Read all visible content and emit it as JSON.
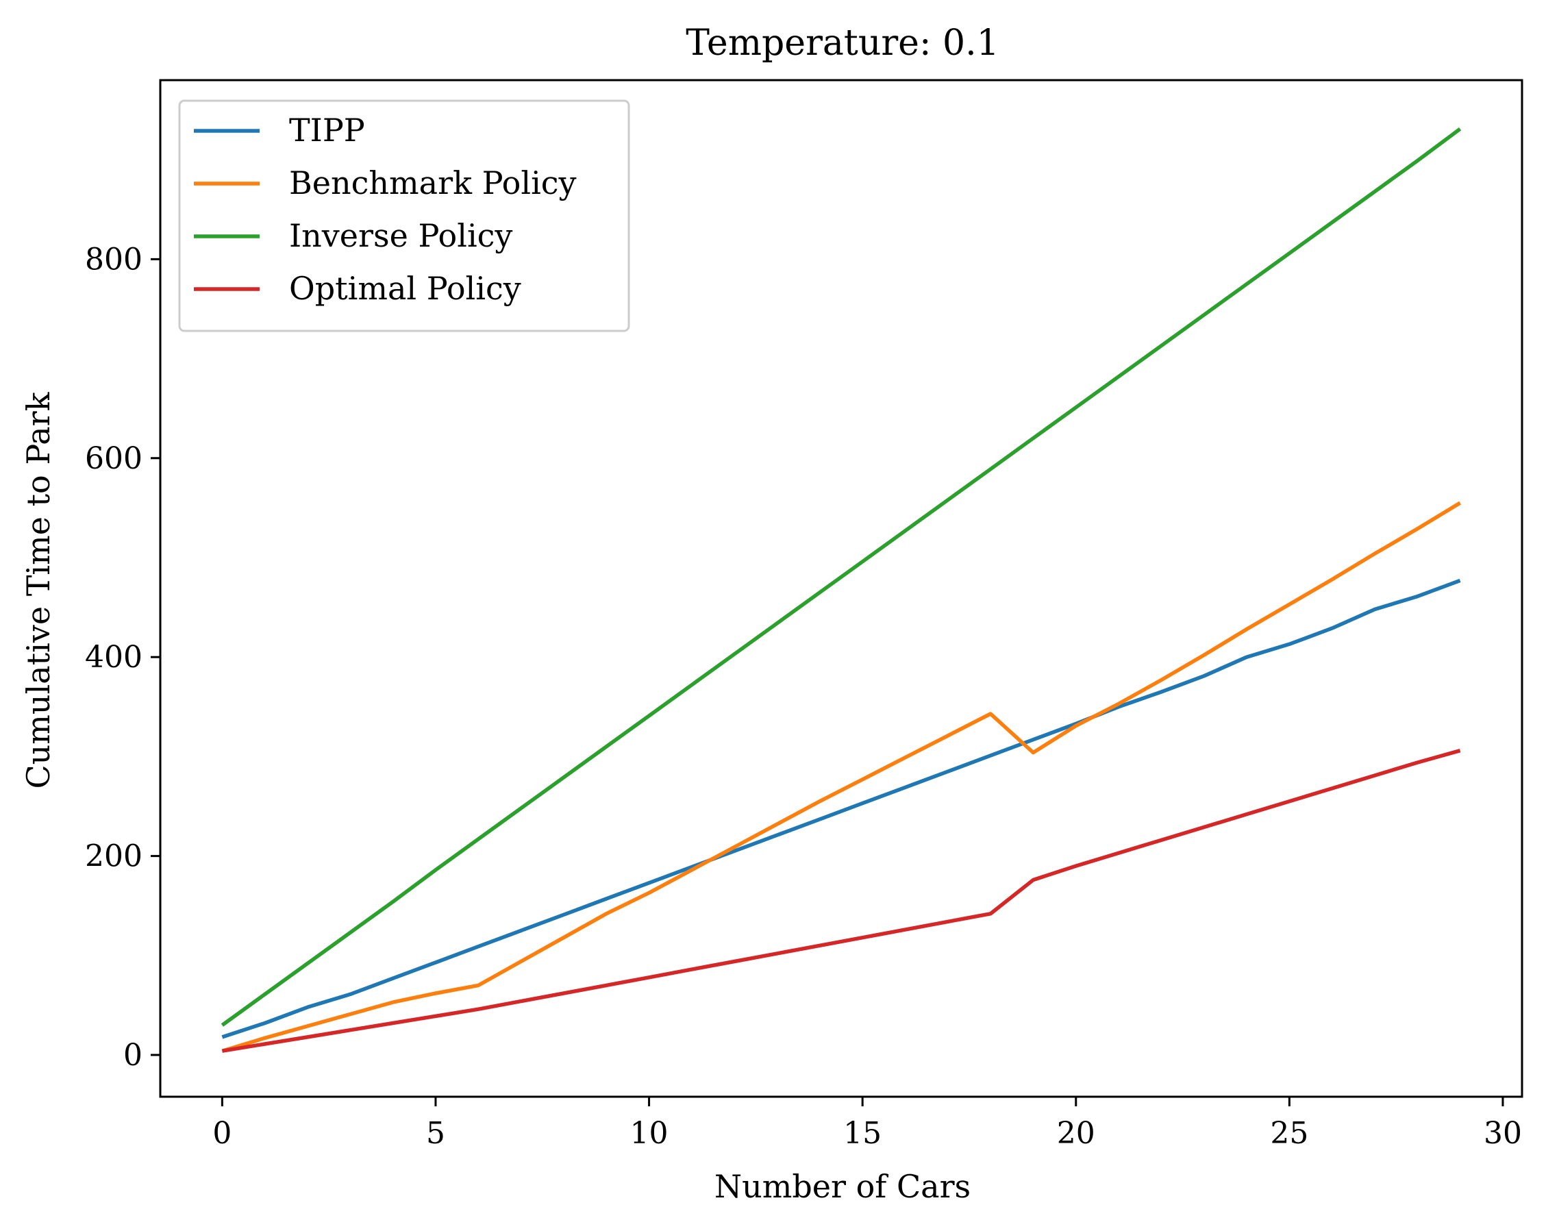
{
  "chart_data": {
    "type": "line",
    "title": "Temperature: 0.1",
    "xlabel": "Number of Cars",
    "ylabel": "Cumulative Time to Park",
    "xlim": [
      -1.45,
      30.45
    ],
    "ylim": [
      -42,
      980
    ],
    "xticks": [
      0,
      5,
      10,
      15,
      20,
      25,
      30
    ],
    "yticks": [
      0,
      200,
      400,
      600,
      800
    ],
    "legend_position": "top-left",
    "x": [
      0,
      1,
      2,
      3,
      4,
      5,
      6,
      7,
      8,
      9,
      10,
      11,
      12,
      13,
      14,
      15,
      16,
      17,
      18,
      19,
      20,
      21,
      22,
      23,
      24,
      25,
      26,
      27,
      28,
      29
    ],
    "series": [
      {
        "name": "TIPP",
        "color": "#1f77b4",
        "values": [
          18,
          32,
          48,
          61,
          77,
          93,
          109,
          125,
          141,
          157,
          173,
          189,
          205,
          221,
          237,
          253,
          269,
          285,
          301,
          317,
          333,
          350,
          365,
          381,
          400,
          413,
          429,
          448,
          461,
          477
        ]
      },
      {
        "name": "Benchmark Policy",
        "color": "#ff7f0e",
        "values": [
          4,
          17,
          29,
          41,
          53,
          62,
          70,
          94,
          118,
          142,
          163,
          186,
          209,
          232,
          255,
          277,
          299,
          321,
          343,
          304,
          331,
          353,
          377,
          402,
          428,
          453,
          478,
          504,
          529,
          555
        ]
      },
      {
        "name": "Inverse Policy",
        "color": "#2ca02c",
        "values": [
          30,
          61,
          92,
          123,
          154,
          186,
          217,
          248,
          279,
          310,
          341,
          372,
          403,
          434,
          465,
          496,
          527,
          558,
          589,
          620,
          651,
          682,
          713,
          744,
          775,
          806,
          837,
          868,
          899,
          931
        ]
      },
      {
        "name": "Optimal Policy",
        "color": "#d62728",
        "values": [
          4,
          11,
          18,
          25,
          32,
          39,
          46,
          54,
          62,
          70,
          78,
          86,
          94,
          102,
          110,
          118,
          126,
          134,
          142,
          176,
          190,
          203,
          216,
          229,
          242,
          255,
          268,
          281,
          294,
          306
        ]
      }
    ]
  }
}
